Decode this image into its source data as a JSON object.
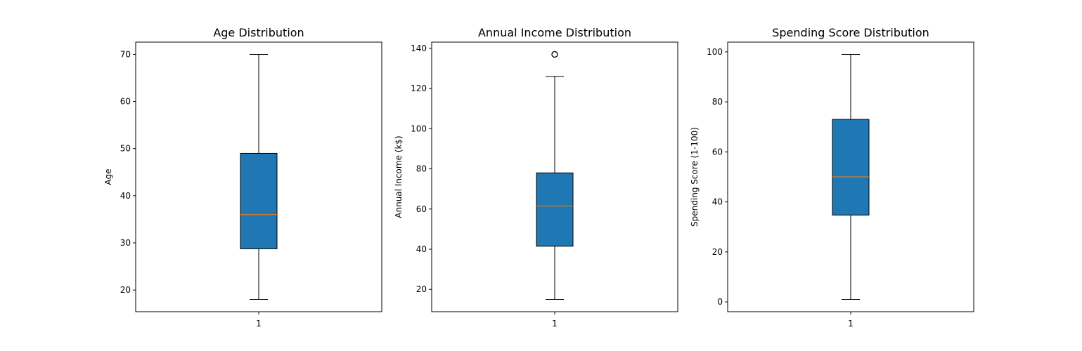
{
  "chart_data": [
    {
      "type": "box",
      "title": "Age Distribution",
      "xlabel": "",
      "ylabel": "Age",
      "categories": [
        "1"
      ],
      "ylim": [
        15.4,
        72.6
      ],
      "yticks": [
        20,
        30,
        40,
        50,
        60,
        70
      ],
      "box": {
        "whisker_low": 18,
        "q1": 28.75,
        "median": 36,
        "q3": 49,
        "whisker_high": 70,
        "outliers": []
      },
      "grid": false,
      "box_color": "#1f77b4",
      "median_color": "#ff7f0e"
    },
    {
      "type": "box",
      "title": "Annual Income Distribution",
      "xlabel": "",
      "ylabel": "Annual Income (k$)",
      "categories": [
        "1"
      ],
      "ylim": [
        8.9,
        143.1
      ],
      "yticks": [
        20,
        40,
        60,
        80,
        100,
        120,
        140
      ],
      "box": {
        "whisker_low": 15,
        "q1": 41.5,
        "median": 61.5,
        "q3": 78,
        "whisker_high": 126,
        "outliers": [
          137
        ]
      },
      "grid": false,
      "box_color": "#1f77b4",
      "median_color": "#ff7f0e"
    },
    {
      "type": "box",
      "title": "Spending Score Distribution",
      "xlabel": "",
      "ylabel": "Spending Score (1-100)",
      "categories": [
        "1"
      ],
      "ylim": [
        -3.9,
        103.9
      ],
      "yticks": [
        0,
        20,
        40,
        60,
        80,
        100
      ],
      "box": {
        "whisker_low": 1,
        "q1": 34.75,
        "median": 50,
        "q3": 73,
        "whisker_high": 99,
        "outliers": []
      },
      "grid": false,
      "box_color": "#1f77b4",
      "median_color": "#ff7f0e"
    }
  ]
}
